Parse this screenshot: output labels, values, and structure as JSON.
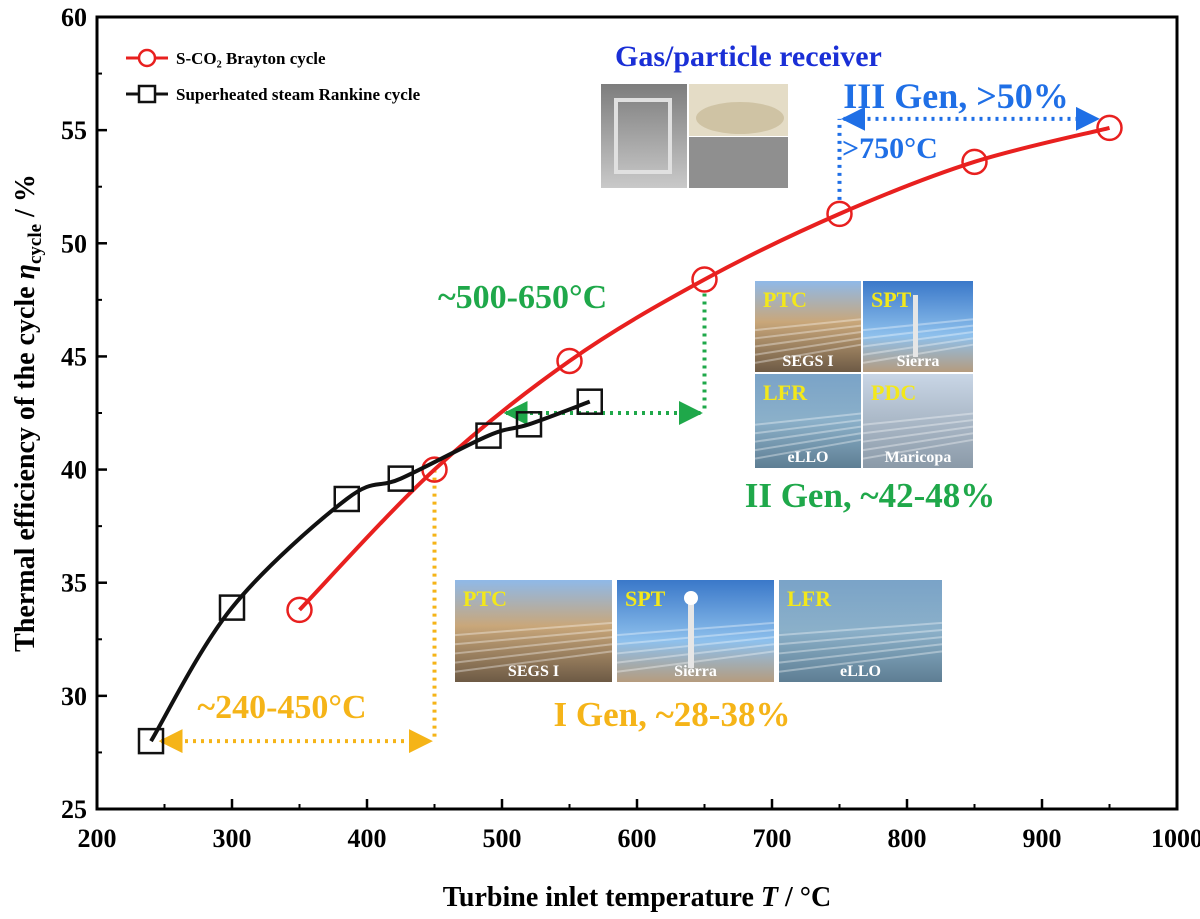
{
  "chart_data": {
    "type": "line",
    "xlabel": "Turbine inlet temperature T / °C",
    "ylabel": "Thermal efficiency of the cycle η_cycle / %",
    "xlim": [
      200,
      1000
    ],
    "ylim": [
      25,
      60
    ],
    "xticks": [
      200,
      300,
      400,
      500,
      600,
      700,
      800,
      900,
      1000
    ],
    "yticks": [
      25,
      30,
      35,
      40,
      45,
      50,
      55,
      60
    ],
    "legend_position": "top-left",
    "series": [
      {
        "name": "S-CO₂ Brayton cycle",
        "marker": "circle",
        "color": "#e8201f",
        "x": [
          350,
          450,
          550,
          650,
          750,
          850,
          950
        ],
        "y": [
          33.8,
          40.0,
          44.8,
          48.4,
          51.3,
          53.6,
          55.1
        ]
      },
      {
        "name": "Superheated steam Rankine cycle",
        "marker": "square",
        "color": "#111111",
        "x": [
          240,
          300,
          385,
          425,
          490,
          520,
          565
        ],
        "y": [
          28.0,
          33.9,
          38.7,
          39.6,
          41.5,
          42.0,
          43.0
        ]
      }
    ],
    "annotations": [
      {
        "id": "gen1",
        "text": "I Gen, ~28-38%",
        "color": "#f5b418"
      },
      {
        "id": "range1",
        "text": "~240-450°C",
        "color": "#f5b418",
        "from_x": 240,
        "to_x": 450,
        "y": 28.0
      },
      {
        "id": "gen2",
        "text": "II Gen, ~42-48%",
        "color": "#1fa84a"
      },
      {
        "id": "range2",
        "text": "~500-650°C",
        "color": "#1fa84a",
        "from_x": 500,
        "to_x": 650,
        "y": 42.5
      },
      {
        "id": "gen3",
        "text": "III Gen, >50%",
        "color": "#1f6fe6"
      },
      {
        "id": "range3",
        "text": ">750°C",
        "color": "#1f6fe6",
        "from_x": 750,
        "to_x": 950,
        "y": 55.5
      },
      {
        "id": "receiver",
        "text": "Gas/particle receiver",
        "color": "#1a2fd6"
      }
    ],
    "photo_labels": {
      "gen1": [
        "PTC",
        "SPT",
        "LFR"
      ],
      "gen1_sub": [
        "SEGS I",
        "Sierra",
        "eLLO"
      ],
      "gen2": [
        "PTC",
        "SPT",
        "LFR",
        "PDC"
      ],
      "gen2_sub": [
        "SEGS I",
        "Sierra",
        "eLLO",
        "Maricopa"
      ]
    }
  }
}
